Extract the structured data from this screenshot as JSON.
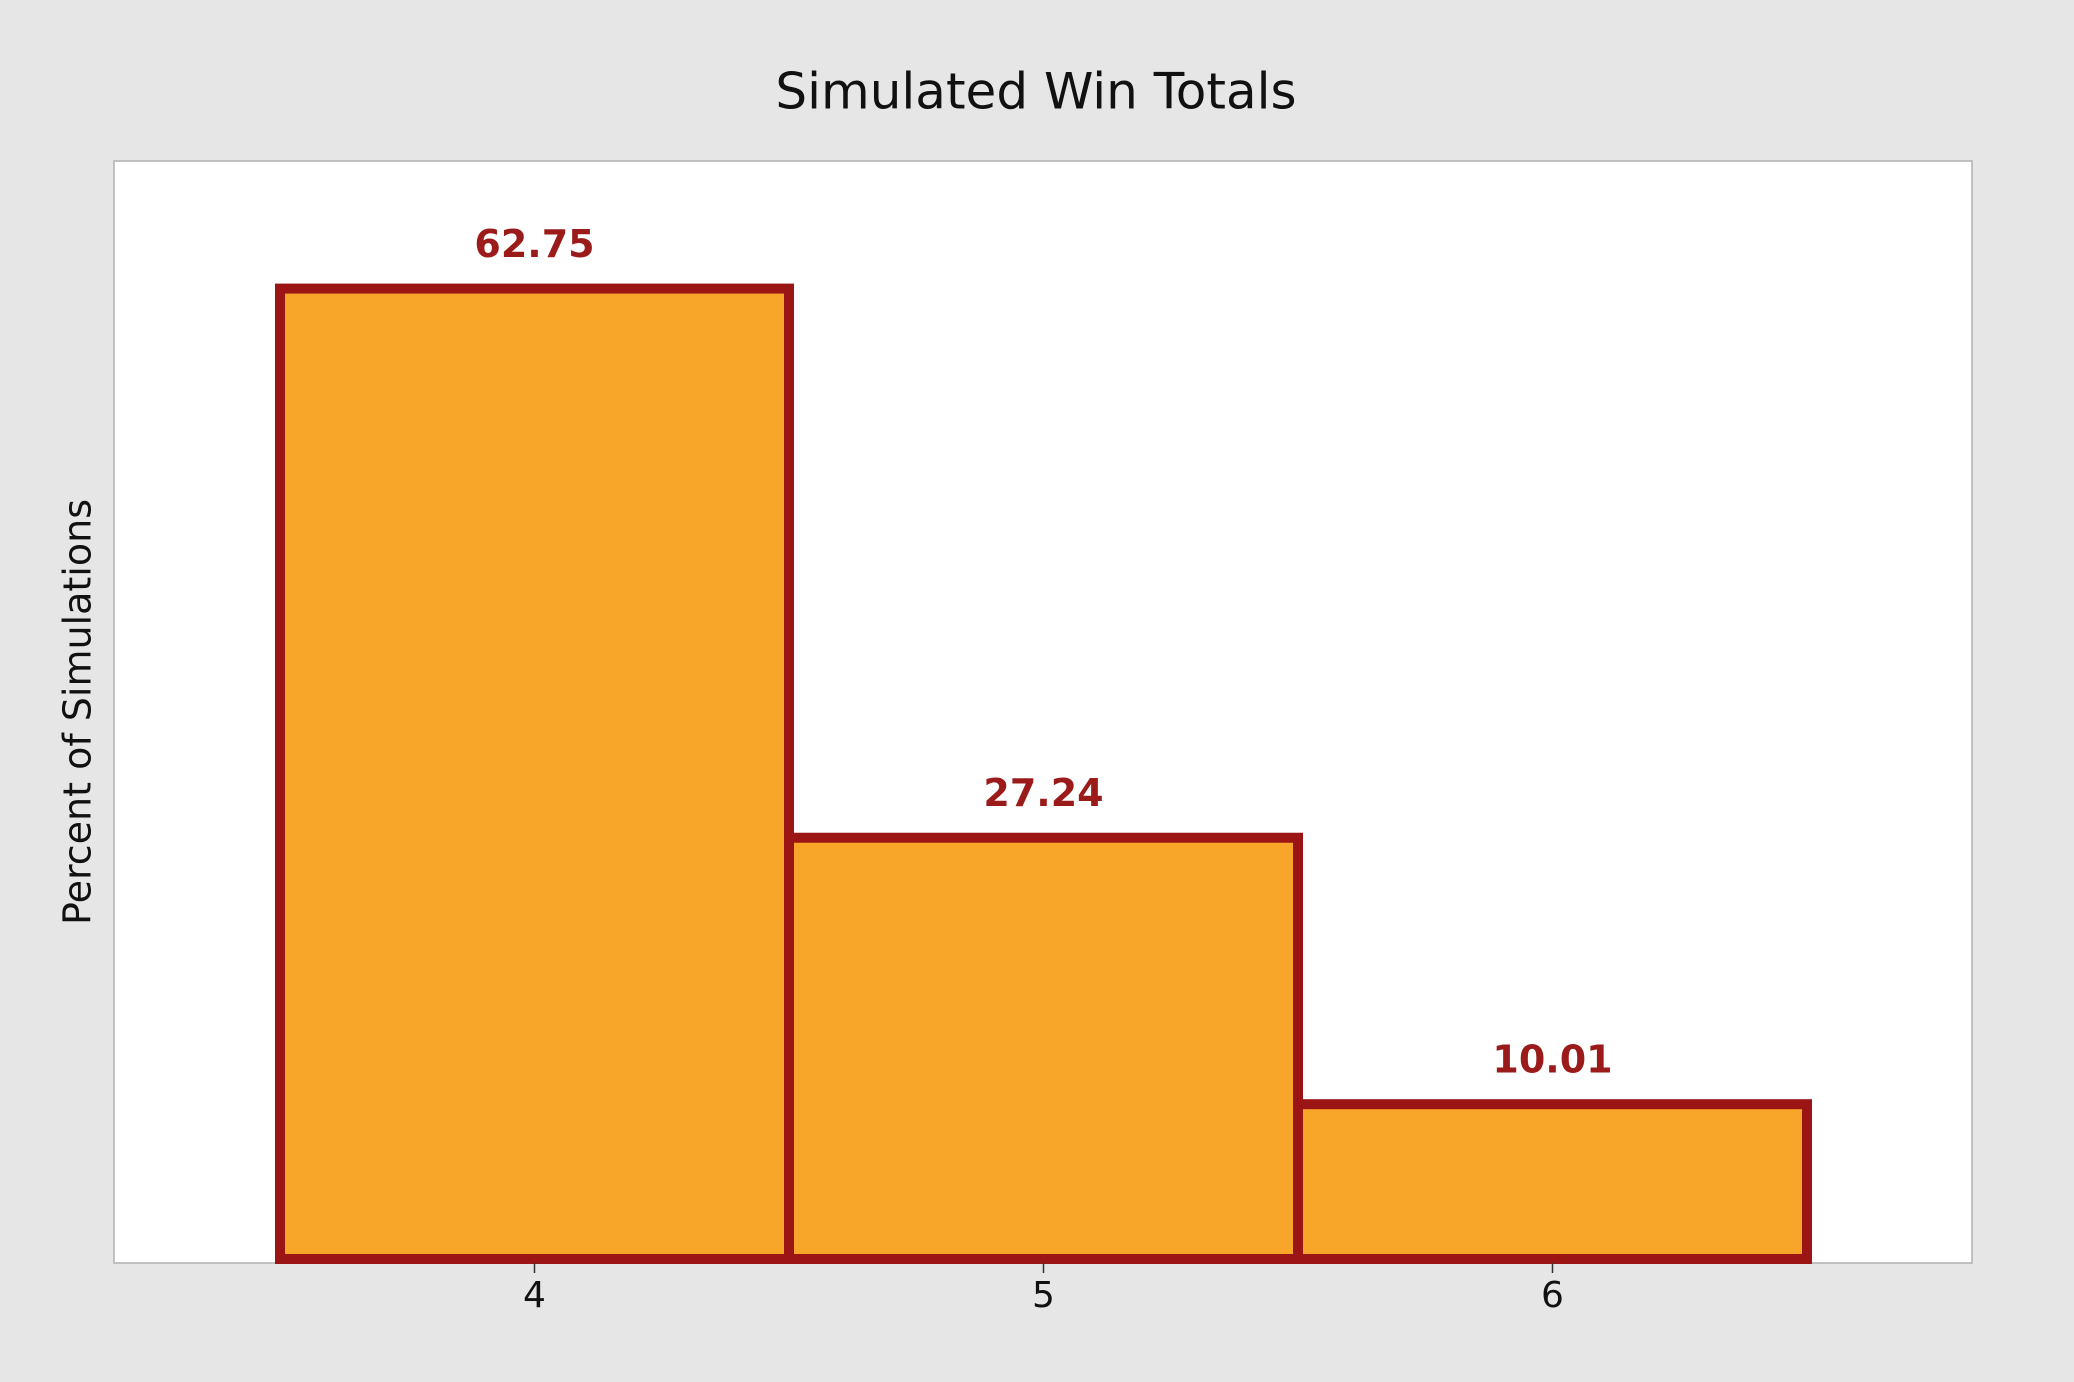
{
  "chart_data": {
    "type": "bar",
    "title": "Simulated Win Totals",
    "y_label": "Percent of Simulations",
    "categories": [
      "4",
      "5",
      "6"
    ],
    "values": [
      62.75,
      27.24,
      10.01
    ],
    "color": "#f8a629",
    "edge_color": "#9b1515",
    "label_color": "#9b1a1a",
    "ylim": [
      0,
      71
    ]
  }
}
